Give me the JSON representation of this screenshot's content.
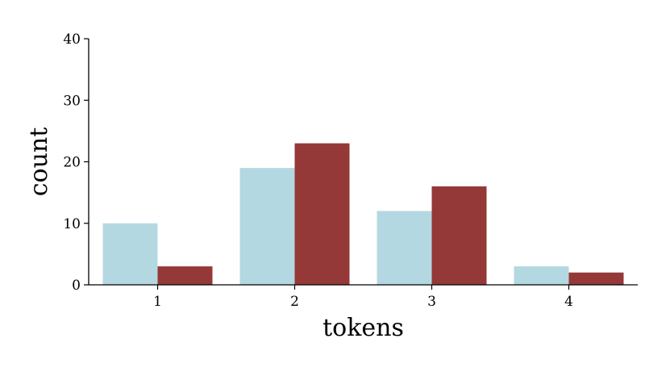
{
  "chart_data": {
    "type": "bar",
    "categories": [
      "1",
      "2",
      "3",
      "4"
    ],
    "series": [
      {
        "values": [
          10,
          19,
          12,
          3
        ],
        "color": "#b4d8e1"
      },
      {
        "values": [
          3,
          23,
          16,
          2
        ],
        "color": "#953838"
      }
    ],
    "xlabel": "tokens",
    "ylabel": "count",
    "ylim": [
      0,
      40
    ],
    "yticks": [
      "0",
      "10",
      "20",
      "30",
      "40"
    ],
    "grid": false,
    "legend": "none"
  }
}
